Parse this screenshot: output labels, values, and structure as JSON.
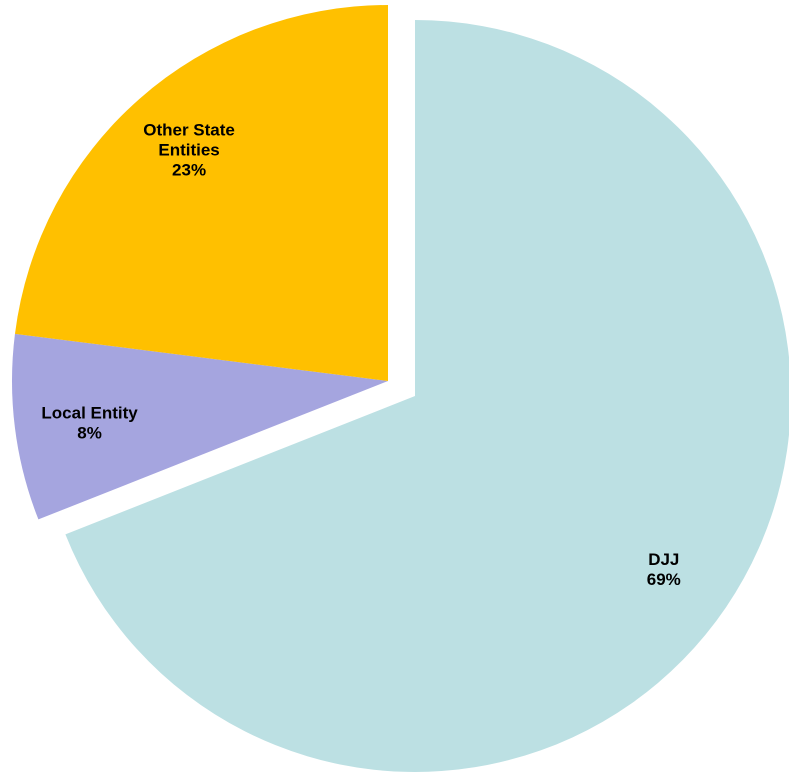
{
  "chart_data": {
    "type": "pie",
    "categories": [
      "DJJ",
      "Local Entity",
      "Other State Entities"
    ],
    "values": [
      69,
      8,
      23
    ],
    "value_labels": [
      "69%",
      "8%",
      "23%"
    ],
    "colors": [
      "#bce0e3",
      "#a5a5df",
      "#ffc000"
    ],
    "exploded": [
      false,
      true,
      true
    ]
  }
}
